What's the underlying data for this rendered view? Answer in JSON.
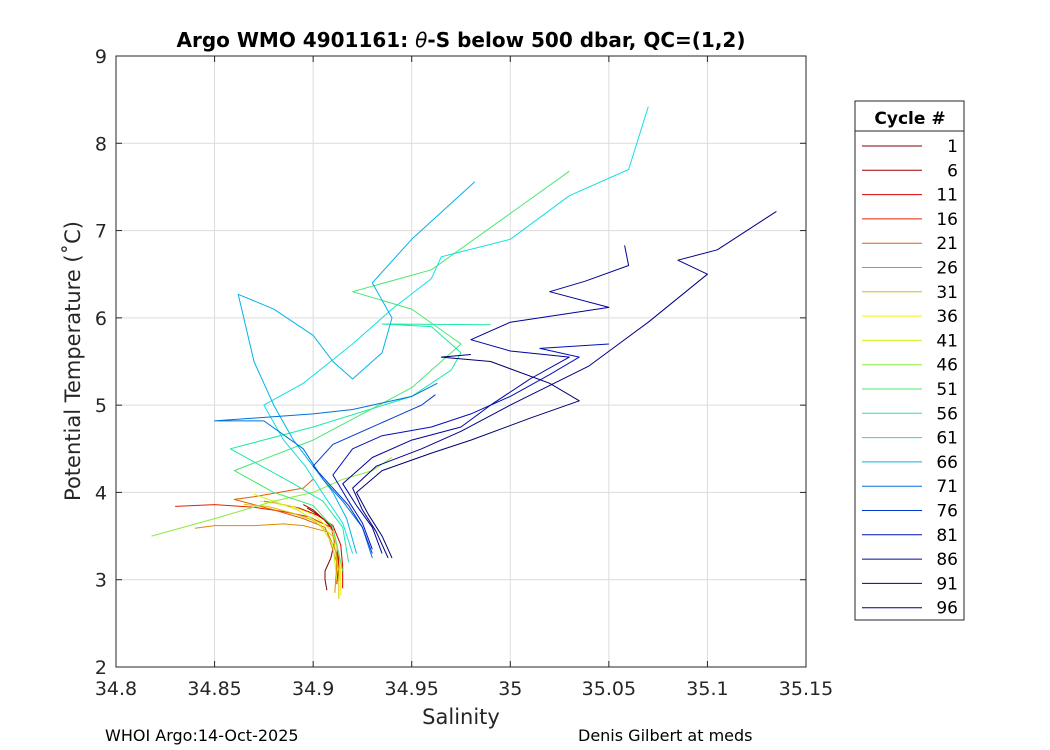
{
  "chart_data": {
    "type": "line",
    "title_prefix": "Argo WMO 4901161: ",
    "title_symbol": "θ",
    "title_suffix": "-S below 500 dbar,  QC=(1,2)",
    "xlabel": "Salinity",
    "ylabel": "Potential Temperature (˚C)",
    "xlim": [
      34.8,
      35.15
    ],
    "ylim": [
      2,
      9
    ],
    "xticks": [
      34.8,
      34.85,
      34.9,
      34.95,
      35,
      35.05,
      35.1,
      35.15
    ],
    "xtick_labels": [
      "34.8",
      "34.85",
      "34.9",
      "34.95",
      "35",
      "35.05",
      "35.1",
      "35.15"
    ],
    "yticks": [
      2,
      3,
      4,
      5,
      6,
      7,
      8,
      9
    ],
    "ytick_labels": [
      "2",
      "3",
      "4",
      "5",
      "6",
      "7",
      "8",
      "9"
    ],
    "grid": true,
    "legend_title": "Cycle #",
    "legend_position": "right",
    "legend": [
      {
        "label": "1",
        "color": "#800000"
      },
      {
        "label": "6",
        "color": "#a00000"
      },
      {
        "label": "11",
        "color": "#d90000"
      },
      {
        "label": "16",
        "color": "#e32400"
      },
      {
        "label": "21",
        "color": "#e55d00"
      },
      {
        "label": "26",
        "color": "#e08a00"
      },
      {
        "label": "31",
        "color": "#d6c000"
      },
      {
        "label": "36",
        "color": "#f2f200"
      },
      {
        "label": "41",
        "color": "#c8f21a"
      },
      {
        "label": "46",
        "color": "#8aeb3c"
      },
      {
        "label": "51",
        "color": "#48e870"
      },
      {
        "label": "56",
        "color": "#1ee8a8"
      },
      {
        "label": "61",
        "color": "#12e0e0"
      },
      {
        "label": "66",
        "color": "#00b4e8"
      },
      {
        "label": "71",
        "color": "#0070d8"
      },
      {
        "label": "76",
        "color": "#0038d0"
      },
      {
        "label": "81",
        "color": "#0010b8"
      },
      {
        "label": "86",
        "color": "#00009c"
      },
      {
        "label": "91",
        "color": "#000088"
      },
      {
        "label": "96",
        "color": "#000070"
      }
    ],
    "series": [
      {
        "name": "1",
        "color": "#800000",
        "points": [
          [
            34.907,
            2.88
          ],
          [
            34.906,
            3.0
          ],
          [
            34.906,
            3.1
          ],
          [
            34.909,
            3.25
          ],
          [
            34.911,
            3.45
          ],
          [
            34.909,
            3.6
          ],
          [
            34.905,
            3.7
          ],
          [
            34.9,
            3.78
          ],
          [
            34.897,
            3.82
          ]
        ]
      },
      {
        "name": "6",
        "color": "#a00000",
        "points": [
          [
            34.912,
            2.95
          ],
          [
            34.913,
            3.15
          ],
          [
            34.912,
            3.4
          ],
          [
            34.909,
            3.62
          ],
          [
            34.904,
            3.72
          ],
          [
            34.9,
            3.8
          ],
          [
            34.895,
            3.86
          ]
        ]
      },
      {
        "name": "11",
        "color": "#d90000",
        "points": [
          [
            34.915,
            2.9
          ],
          [
            34.915,
            3.15
          ],
          [
            34.914,
            3.4
          ],
          [
            34.91,
            3.62
          ],
          [
            34.902,
            3.74
          ],
          [
            34.893,
            3.82
          ],
          [
            34.885,
            3.86
          ],
          [
            34.875,
            3.9
          ]
        ]
      },
      {
        "name": "16",
        "color": "#e32400",
        "points": [
          [
            34.913,
            3.0
          ],
          [
            34.913,
            3.3
          ],
          [
            34.909,
            3.6
          ],
          [
            34.898,
            3.72
          ],
          [
            34.885,
            3.78
          ],
          [
            34.87,
            3.83
          ],
          [
            34.85,
            3.86
          ],
          [
            34.83,
            3.84
          ]
        ]
      },
      {
        "name": "21",
        "color": "#e55d00",
        "points": [
          [
            34.912,
            2.95
          ],
          [
            34.912,
            3.3
          ],
          [
            34.906,
            3.6
          ],
          [
            34.895,
            3.7
          ],
          [
            34.88,
            3.8
          ],
          [
            34.86,
            3.92
          ],
          [
            34.87,
            3.95
          ],
          [
            34.895,
            4.05
          ],
          [
            34.9,
            4.15
          ]
        ]
      },
      {
        "name": "26",
        "color": "#e08a00",
        "points": [
          [
            34.911,
            2.85
          ],
          [
            34.912,
            3.2
          ],
          [
            34.907,
            3.55
          ],
          [
            34.895,
            3.62
          ],
          [
            34.885,
            3.64
          ],
          [
            34.87,
            3.62
          ],
          [
            34.85,
            3.62
          ],
          [
            34.84,
            3.59
          ]
        ]
      },
      {
        "name": "31",
        "color": "#d6c000",
        "points": [
          [
            34.913,
            2.78
          ],
          [
            34.913,
            3.1
          ],
          [
            34.91,
            3.5
          ],
          [
            34.9,
            3.68
          ],
          [
            34.89,
            3.76
          ],
          [
            34.877,
            3.84
          ],
          [
            34.865,
            3.86
          ]
        ]
      },
      {
        "name": "36",
        "color": "#f2f200",
        "points": [
          [
            34.914,
            2.82
          ],
          [
            34.914,
            3.2
          ],
          [
            34.91,
            3.55
          ],
          [
            34.9,
            3.75
          ],
          [
            34.888,
            3.85
          ],
          [
            34.873,
            3.9
          ]
        ]
      },
      {
        "name": "41",
        "color": "#c8f21a",
        "points": [
          [
            34.912,
            3.0
          ],
          [
            34.91,
            3.4
          ],
          [
            34.903,
            3.65
          ],
          [
            34.892,
            3.8
          ],
          [
            34.88,
            3.9
          ],
          [
            34.87,
            3.98
          ]
        ]
      },
      {
        "name": "46",
        "color": "#8aeb3c",
        "points": [
          [
            34.818,
            3.5
          ],
          [
            34.85,
            3.7
          ],
          [
            34.88,
            3.9
          ],
          [
            34.9,
            4.0
          ],
          [
            34.915,
            4.15
          ],
          [
            34.93,
            4.25
          ],
          [
            34.94,
            4.4
          ]
        ]
      },
      {
        "name": "51",
        "color": "#48e870",
        "points": [
          [
            34.915,
            3.1
          ],
          [
            34.91,
            3.6
          ],
          [
            34.9,
            3.85
          ],
          [
            34.88,
            4.0
          ],
          [
            34.86,
            4.25
          ],
          [
            34.9,
            4.6
          ],
          [
            34.95,
            5.2
          ],
          [
            34.975,
            5.7
          ],
          [
            34.95,
            6.1
          ],
          [
            34.92,
            6.3
          ],
          [
            34.96,
            6.55
          ],
          [
            35.03,
            7.68
          ]
        ]
      },
      {
        "name": "56",
        "color": "#1ee8a8",
        "points": [
          [
            34.918,
            3.2
          ],
          [
            34.915,
            3.6
          ],
          [
            34.905,
            3.9
          ],
          [
            34.89,
            4.1
          ],
          [
            34.858,
            4.5
          ],
          [
            34.9,
            4.75
          ],
          [
            34.95,
            5.1
          ],
          [
            34.97,
            5.4
          ],
          [
            34.975,
            5.6
          ],
          [
            34.96,
            5.9
          ],
          [
            34.935,
            5.93
          ],
          [
            34.99,
            5.92
          ]
        ]
      },
      {
        "name": "61",
        "color": "#12e0e0",
        "points": [
          [
            34.92,
            3.3
          ],
          [
            34.915,
            3.65
          ],
          [
            34.906,
            3.95
          ],
          [
            34.896,
            4.3
          ],
          [
            34.885,
            4.6
          ],
          [
            34.875,
            5.0
          ],
          [
            34.895,
            5.25
          ],
          [
            34.92,
            5.7
          ],
          [
            34.94,
            6.1
          ],
          [
            34.96,
            6.45
          ],
          [
            34.965,
            6.7
          ],
          [
            35.0,
            6.9
          ],
          [
            35.03,
            7.4
          ],
          [
            35.06,
            7.7
          ],
          [
            35.07,
            8.42
          ]
        ]
      },
      {
        "name": "66",
        "color": "#00b4e8",
        "points": [
          [
            34.922,
            3.3
          ],
          [
            34.917,
            3.7
          ],
          [
            34.91,
            4.0
          ],
          [
            34.9,
            4.3
          ],
          [
            34.89,
            4.6
          ],
          [
            34.88,
            5.0
          ],
          [
            34.87,
            5.5
          ],
          [
            34.862,
            6.27
          ],
          [
            34.88,
            6.1
          ],
          [
            34.9,
            5.8
          ],
          [
            34.91,
            5.5
          ],
          [
            34.92,
            5.3
          ],
          [
            34.935,
            5.6
          ],
          [
            34.94,
            6.0
          ],
          [
            34.93,
            6.4
          ],
          [
            34.95,
            6.9
          ],
          [
            34.982,
            7.56
          ]
        ]
      },
      {
        "name": "71",
        "color": "#0070d8",
        "points": [
          [
            34.93,
            3.25
          ],
          [
            34.925,
            3.6
          ],
          [
            34.915,
            3.9
          ],
          [
            34.905,
            4.15
          ],
          [
            34.895,
            4.5
          ],
          [
            34.875,
            4.82
          ],
          [
            34.85,
            4.82
          ],
          [
            34.9,
            4.9
          ],
          [
            34.92,
            4.95
          ],
          [
            34.95,
            5.1
          ],
          [
            34.963,
            5.25
          ]
        ]
      },
      {
        "name": "76",
        "color": "#0038d0",
        "points": [
          [
            34.93,
            3.3
          ],
          [
            34.925,
            3.6
          ],
          [
            34.918,
            3.85
          ],
          [
            34.908,
            4.1
          ],
          [
            34.9,
            4.3
          ],
          [
            34.91,
            4.55
          ],
          [
            34.925,
            4.7
          ],
          [
            34.94,
            4.85
          ],
          [
            34.955,
            5.0
          ],
          [
            34.962,
            5.12
          ]
        ]
      },
      {
        "name": "81",
        "color": "#0010b8",
        "points": [
          [
            34.93,
            3.35
          ],
          [
            34.925,
            3.65
          ],
          [
            34.918,
            3.9
          ],
          [
            34.91,
            4.2
          ],
          [
            34.92,
            4.5
          ],
          [
            34.935,
            4.65
          ],
          [
            34.96,
            4.75
          ],
          [
            34.98,
            4.9
          ],
          [
            35.0,
            5.1
          ],
          [
            35.02,
            5.35
          ],
          [
            35.035,
            5.55
          ],
          [
            35.015,
            5.65
          ],
          [
            35.05,
            5.7
          ]
        ]
      },
      {
        "name": "86",
        "color": "#00009c",
        "points": [
          [
            34.935,
            3.3
          ],
          [
            34.93,
            3.6
          ],
          [
            34.922,
            3.85
          ],
          [
            34.915,
            4.1
          ],
          [
            34.93,
            4.4
          ],
          [
            34.95,
            4.6
          ],
          [
            34.975,
            4.75
          ],
          [
            34.99,
            5.0
          ],
          [
            35.01,
            5.3
          ],
          [
            35.03,
            5.55
          ],
          [
            35.0,
            5.62
          ],
          [
            34.98,
            5.75
          ],
          [
            35.0,
            5.95
          ],
          [
            35.05,
            6.12
          ],
          [
            35.02,
            6.3
          ],
          [
            35.038,
            6.42
          ],
          [
            35.06,
            6.6
          ],
          [
            35.058,
            6.83
          ]
        ]
      },
      {
        "name": "91",
        "color": "#000088",
        "points": [
          [
            34.938,
            3.25
          ],
          [
            34.932,
            3.55
          ],
          [
            34.925,
            3.8
          ],
          [
            34.92,
            4.05
          ],
          [
            34.932,
            4.3
          ],
          [
            34.955,
            4.5
          ],
          [
            34.975,
            4.7
          ],
          [
            35.0,
            5.0
          ],
          [
            35.04,
            5.45
          ],
          [
            35.07,
            5.95
          ],
          [
            35.1,
            6.5
          ],
          [
            35.085,
            6.66
          ],
          [
            35.105,
            6.78
          ],
          [
            35.135,
            7.22
          ]
        ]
      },
      {
        "name": "96",
        "color": "#000070",
        "points": [
          [
            34.94,
            3.25
          ],
          [
            34.935,
            3.5
          ],
          [
            34.928,
            3.75
          ],
          [
            34.922,
            4.0
          ],
          [
            34.935,
            4.25
          ],
          [
            34.96,
            4.45
          ],
          [
            34.98,
            4.6
          ],
          [
            35.01,
            4.85
          ],
          [
            35.035,
            5.05
          ],
          [
            35.02,
            5.25
          ],
          [
            34.99,
            5.5
          ],
          [
            34.965,
            5.55
          ],
          [
            34.98,
            5.58
          ]
        ]
      }
    ]
  },
  "footer": {
    "left": "WHOI Argo:14-Oct-2025",
    "right": "Denis Gilbert at meds"
  }
}
